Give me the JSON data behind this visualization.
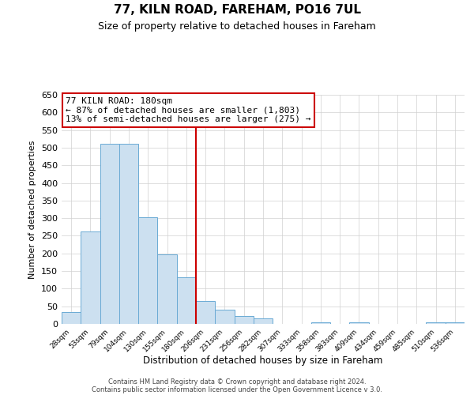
{
  "title": "77, KILN ROAD, FAREHAM, PO16 7UL",
  "subtitle": "Size of property relative to detached houses in Fareham",
  "xlabel": "Distribution of detached houses by size in Fareham",
  "ylabel": "Number of detached properties",
  "categories": [
    "28sqm",
    "53sqm",
    "79sqm",
    "104sqm",
    "130sqm",
    "155sqm",
    "180sqm",
    "206sqm",
    "231sqm",
    "256sqm",
    "282sqm",
    "307sqm",
    "333sqm",
    "358sqm",
    "383sqm",
    "409sqm",
    "434sqm",
    "459sqm",
    "485sqm",
    "510sqm",
    "536sqm"
  ],
  "values": [
    33,
    263,
    512,
    512,
    302,
    198,
    132,
    65,
    40,
    23,
    15,
    0,
    0,
    4,
    0,
    4,
    0,
    0,
    0,
    4,
    4
  ],
  "bar_color": "#cce0f0",
  "bar_edge_color": "#6aaad4",
  "property_line_color": "#cc0000",
  "property_line_index": 6,
  "ylim": [
    0,
    650
  ],
  "yticks": [
    0,
    50,
    100,
    150,
    200,
    250,
    300,
    350,
    400,
    450,
    500,
    550,
    600,
    650
  ],
  "annotation_title": "77 KILN ROAD: 180sqm",
  "annotation_line1": "← 87% of detached houses are smaller (1,803)",
  "annotation_line2": "13% of semi-detached houses are larger (275) →",
  "annotation_box_color": "#ffffff",
  "annotation_box_edge": "#cc0000",
  "footer1": "Contains HM Land Registry data © Crown copyright and database right 2024.",
  "footer2": "Contains public sector information licensed under the Open Government Licence v 3.0.",
  "bg_color": "#ffffff",
  "grid_color": "#d0d0d0"
}
